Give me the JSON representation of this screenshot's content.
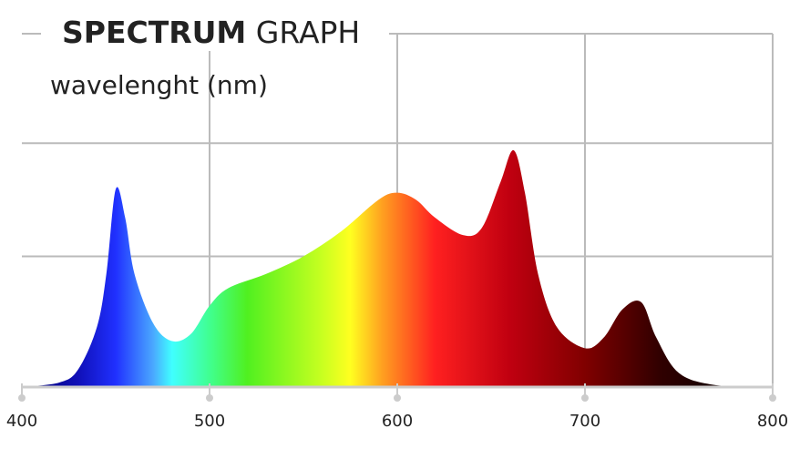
{
  "chart_data": {
    "type": "area",
    "title": [
      "SPECTRUM",
      "GRAPH"
    ],
    "x_label": "wavelenght (nm)",
    "x": [
      400,
      420,
      430,
      440,
      445,
      450,
      455,
      460,
      470,
      480,
      490,
      500,
      510,
      530,
      550,
      570,
      590,
      600,
      610,
      620,
      635,
      645,
      655,
      662,
      668,
      675,
      685,
      700,
      710,
      720,
      730,
      738,
      750,
      770,
      800
    ],
    "values": [
      0,
      1.3,
      5,
      17,
      32,
      56,
      48,
      32,
      18,
      13,
      15,
      23,
      28,
      32,
      37,
      44,
      53,
      55,
      53,
      48,
      43,
      45,
      58,
      67,
      55,
      32,
      17,
      11,
      14,
      22,
      24,
      14,
      4,
      0.5,
      0
    ],
    "xlim": [
      400,
      800
    ],
    "xticks": [
      400,
      500,
      600,
      700,
      800
    ],
    "xgrid": [
      500,
      600,
      700
    ],
    "ylim": [
      0,
      100
    ],
    "ygrid": [
      37,
      69
    ],
    "grid": true,
    "fill_stops": [
      {
        "at": 400,
        "color": "#00006e"
      },
      {
        "at": 430,
        "color": "#1010b8"
      },
      {
        "at": 450,
        "color": "#2030ff"
      },
      {
        "at": 470,
        "color": "#4aa8ff"
      },
      {
        "at": 480,
        "color": "#40ffff"
      },
      {
        "at": 500,
        "color": "#40ff90"
      },
      {
        "at": 520,
        "color": "#50f020"
      },
      {
        "at": 560,
        "color": "#c8ff20"
      },
      {
        "at": 575,
        "color": "#ffff20"
      },
      {
        "at": 592,
        "color": "#ffa020"
      },
      {
        "at": 620,
        "color": "#ff2020"
      },
      {
        "at": 660,
        "color": "#c00010"
      },
      {
        "at": 700,
        "color": "#800000"
      },
      {
        "at": 740,
        "color": "#300000"
      },
      {
        "at": 775,
        "color": "#100000"
      }
    ]
  }
}
